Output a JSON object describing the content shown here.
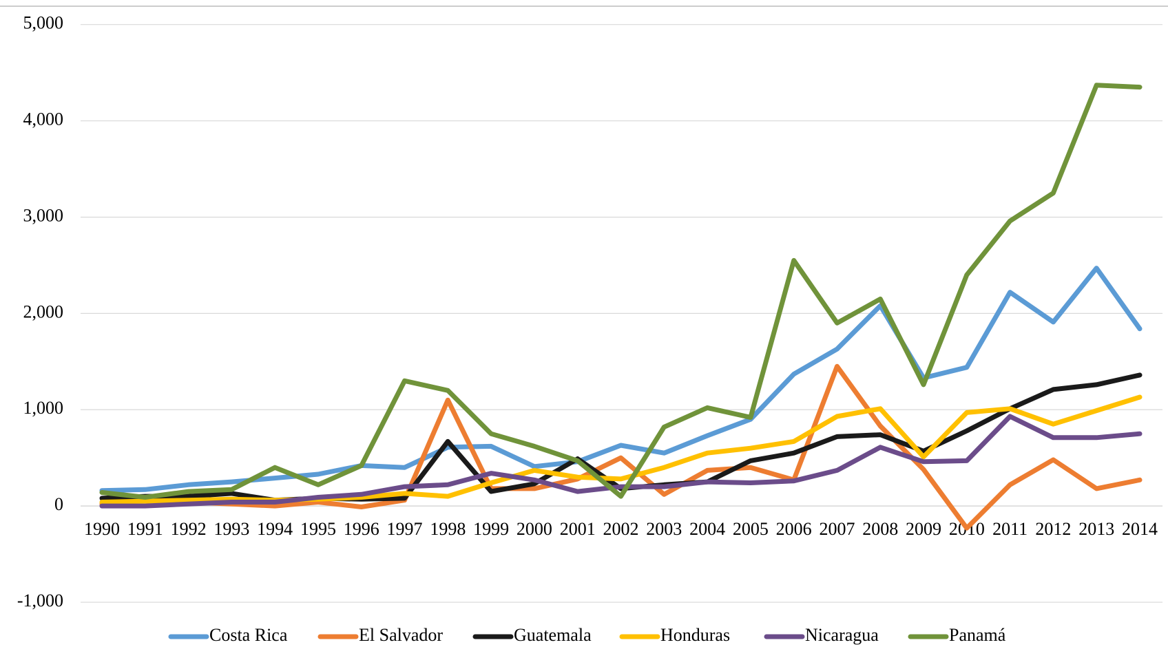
{
  "chart_data": {
    "type": "line",
    "categories": [
      "1990",
      "1991",
      "1992",
      "1993",
      "1994",
      "1995",
      "1996",
      "1997",
      "1998",
      "1999",
      "2000",
      "2001",
      "2002",
      "2003",
      "2004",
      "2005",
      "2006",
      "2007",
      "2008",
      "2009",
      "2010",
      "2011",
      "2012",
      "2013",
      "2014"
    ],
    "series": [
      {
        "name": "Costa Rica",
        "color": "#5b9bd5",
        "values": [
          160,
          170,
          220,
          250,
          290,
          330,
          420,
          400,
          610,
          620,
          410,
          460,
          630,
          550,
          730,
          900,
          1370,
          1630,
          2080,
          1330,
          1440,
          2220,
          1910,
          2470,
          1840
        ]
      },
      {
        "name": "El Salvador",
        "color": "#ed7d31",
        "values": [
          20,
          60,
          40,
          20,
          0,
          40,
          -10,
          60,
          1100,
          180,
          180,
          280,
          500,
          120,
          370,
          400,
          270,
          1450,
          830,
          380,
          -230,
          220,
          480,
          180,
          270
        ]
      },
      {
        "name": "Guatemala",
        "color": "#1a1a1a",
        "values": [
          80,
          100,
          100,
          130,
          60,
          80,
          70,
          80,
          670,
          150,
          230,
          490,
          180,
          220,
          250,
          470,
          550,
          720,
          740,
          570,
          780,
          1010,
          1210,
          1260,
          1360
        ]
      },
      {
        "name": "Honduras",
        "color": "#ffc000",
        "values": [
          40,
          50,
          60,
          70,
          60,
          70,
          90,
          130,
          100,
          240,
          370,
          300,
          280,
          400,
          550,
          600,
          670,
          930,
          1010,
          510,
          970,
          1010,
          850,
          990,
          1130
        ]
      },
      {
        "name": "Nicaragua",
        "color": "#6b4c8a",
        "values": [
          0,
          0,
          20,
          40,
          40,
          90,
          120,
          200,
          220,
          340,
          270,
          150,
          200,
          200,
          250,
          240,
          260,
          370,
          610,
          460,
          470,
          930,
          710,
          710,
          750
        ]
      },
      {
        "name": "Panamá",
        "color": "#70933a",
        "values": [
          140,
          90,
          150,
          170,
          400,
          220,
          420,
          1300,
          1200,
          750,
          620,
          470,
          100,
          820,
          1020,
          920,
          2550,
          1900,
          2150,
          1260,
          2400,
          2960,
          3250,
          4370,
          4350
        ]
      }
    ],
    "ylim": [
      -1000,
      5000
    ],
    "yticks": [
      {
        "value": -1000,
        "label": "-1,000"
      },
      0,
      {
        "value": 1000,
        "label": "1,000"
      },
      {
        "value": 2000,
        "label": "2,000"
      },
      {
        "value": 3000,
        "label": "3,000"
      },
      {
        "value": 4000,
        "label": "4,000"
      },
      {
        "value": 5000,
        "label": "5,000"
      }
    ],
    "grid": true,
    "legend": "bottom"
  }
}
